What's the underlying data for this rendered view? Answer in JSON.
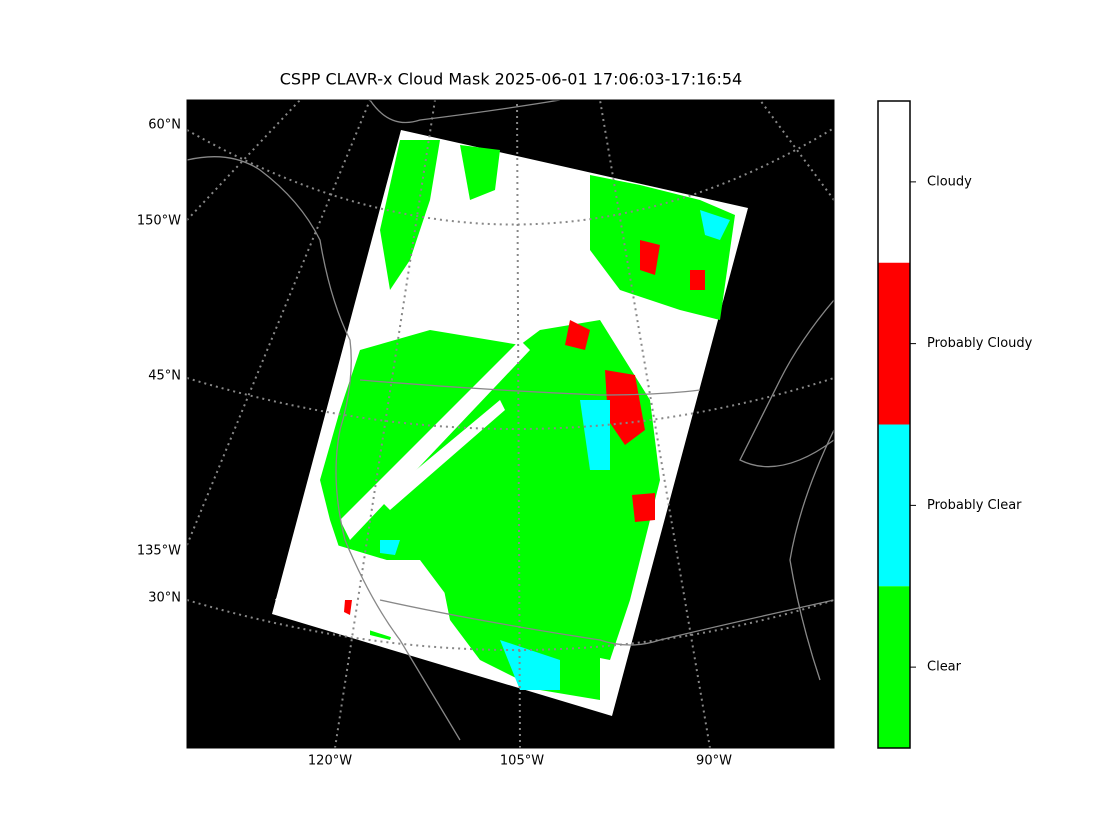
{
  "title": "CSPP CLAVR-x Cloud Mask 2025-06-01 17:06:03-17:16:54",
  "left_labels": [
    "60°N",
    "150°W",
    "45°N",
    "135°W",
    "30°N"
  ],
  "bottom_labels": [
    "120°W",
    "105°W",
    "90°W"
  ],
  "legend": [
    {
      "label": "Cloudy",
      "color": "#ffffff"
    },
    {
      "label": "Probably Cloudy",
      "color": "#ff0000"
    },
    {
      "label": "Probably Clear",
      "color": "#00ffff"
    },
    {
      "label": "Clear",
      "color": "#00ff00"
    }
  ]
}
